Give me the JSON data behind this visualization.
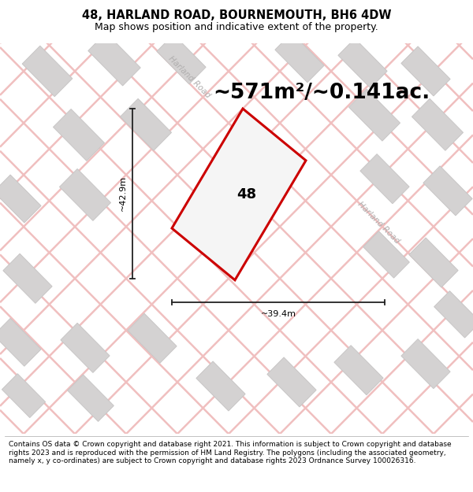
{
  "title": "48, HARLAND ROAD, BOURNEMOUTH, BH6 4DW",
  "subtitle": "Map shows position and indicative extent of the property.",
  "area_text": "~571m²/~0.141ac.",
  "property_number": "48",
  "dim_width": "~39.4m",
  "dim_height": "~42.9m",
  "road_label_top": "Harland Road",
  "road_label_right": "Harland Road",
  "footer": "Contains OS data © Crown copyright and database right 2021. This information is subject to Crown copyright and database rights 2023 and is reproduced with the permission of HM Land Registry. The polygons (including the associated geometry, namely x, y co-ordinates) are subject to Crown copyright and database rights 2023 Ordnance Survey 100026316.",
  "map_bg": "#f7f5f5",
  "building_color": "#d4d2d2",
  "building_outline": "#c8c6c6",
  "grid_line_color": "#f0bfbf",
  "property_outline": "#cc0000",
  "title_fontsize": 10.5,
  "subtitle_fontsize": 9,
  "area_fontsize": 19,
  "label_fontsize": 13,
  "footer_fontsize": 6.5,
  "road_label_color": "#b0aeae",
  "dim_line_color": "#222222",
  "dim_fontsize": 8
}
